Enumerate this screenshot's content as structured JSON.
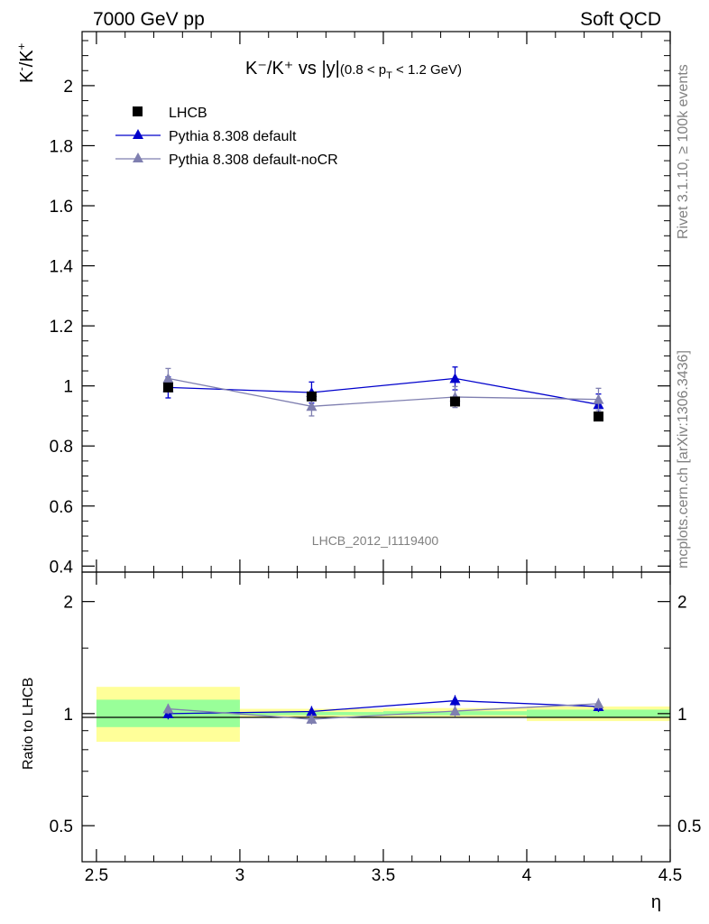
{
  "header": {
    "left": "7000 GeV pp",
    "right": "Soft QCD"
  },
  "side": {
    "rivet": "Rivet 3.1.10, ≥ 100k events",
    "source": "mcplots.cern.ch [arXiv:1306.3436]"
  },
  "analysis_id": "LHCB_2012_I1119400",
  "colors": {
    "data": "#000000",
    "default": "#0000cc",
    "nocr": "#7f7fb0",
    "band_outer": "#ffff99",
    "band_inner": "#99ff99"
  },
  "chart_data": [
    {
      "type": "line",
      "title": "K⁻/K⁺ vs |y|(0.8 < p_T < 1.2 GeV)",
      "title_parts": {
        "main": "K⁻/K⁺ vs |y|",
        "range": "(0.8 < p",
        "sub": "T",
        "range_end": " < 1.2 GeV)"
      },
      "ylabel": "K⁻/K⁺",
      "xlim": [
        2.45,
        4.5
      ],
      "ylim": [
        0.38,
        2.18
      ],
      "yticks": [
        0.4,
        0.6,
        0.8,
        1,
        1.2,
        1.4,
        1.6,
        1.8,
        2
      ],
      "ytick_labels": [
        "0.4",
        "0.6",
        "0.8",
        "1",
        "1.2",
        "1.4",
        "1.6",
        "1.8",
        "2"
      ],
      "legend": [
        "LHCB",
        "Pythia 8.308 default",
        "Pythia 8.308 default-noCR"
      ],
      "legend_position": "top-left",
      "series": [
        {
          "name": "LHCB",
          "x": [
            2.75,
            3.25,
            3.75,
            4.25
          ],
          "y": [
            0.995,
            0.965,
            0.948,
            0.898
          ],
          "marker": "square",
          "color": "#000000"
        },
        {
          "name": "Pythia 8.308 default",
          "x": [
            2.75,
            3.25,
            3.75,
            4.25
          ],
          "y": [
            0.995,
            0.978,
            1.025,
            0.938
          ],
          "err": [
            0.035,
            0.035,
            0.038,
            0.035
          ],
          "marker": "triangle",
          "color": "#0000cc"
        },
        {
          "name": "Pythia 8.308 default-noCR",
          "x": [
            2.75,
            3.25,
            3.75,
            4.25
          ],
          "y": [
            1.025,
            0.932,
            0.963,
            0.955
          ],
          "err": [
            0.033,
            0.032,
            0.035,
            0.037
          ],
          "marker": "triangle",
          "color": "#7f7fb0"
        }
      ]
    },
    {
      "type": "line",
      "xlabel": "η",
      "ylabel": "Ratio to LHCB",
      "xlim": [
        2.45,
        4.5
      ],
      "ylim": [
        0.4,
        2.4
      ],
      "yscale": "log",
      "yticks": [
        0.5,
        1,
        2
      ],
      "ytick_labels": [
        "0.5",
        "1",
        "2"
      ],
      "xticks": [
        2.5,
        3,
        3.5,
        4,
        4.5
      ],
      "xtick_labels": [
        "2.5",
        "3",
        "3.5",
        "4",
        "4.5"
      ],
      "bands": [
        {
          "x0": 2.5,
          "x1": 3.0,
          "outer": [
            0.84,
            1.18
          ],
          "inner": [
            0.92,
            1.09
          ]
        },
        {
          "x0": 3.0,
          "x1": 3.5,
          "outer": [
            0.975,
            1.03
          ],
          "inner": [
            0.99,
            1.01
          ]
        },
        {
          "x0": 3.5,
          "x1": 4.0,
          "outer": [
            0.975,
            1.035
          ],
          "inner": [
            0.99,
            1.015
          ]
        },
        {
          "x0": 4.0,
          "x1": 4.5,
          "outer": [
            0.955,
            1.045
          ],
          "inner": [
            0.975,
            1.025
          ]
        }
      ],
      "series": [
        {
          "name": "Pythia 8.308 default",
          "x": [
            2.75,
            3.25,
            3.75,
            4.25
          ],
          "y": [
            1.0,
            1.013,
            1.083,
            1.045
          ],
          "err": [
            0.035,
            0.035,
            0.038,
            0.035
          ],
          "color": "#0000cc"
        },
        {
          "name": "Pythia 8.308 default-noCR",
          "x": [
            2.75,
            3.25,
            3.75,
            4.25
          ],
          "y": [
            1.03,
            0.966,
            1.016,
            1.063
          ],
          "err": [
            0.033,
            0.032,
            0.035,
            0.037
          ],
          "color": "#7f7fb0"
        }
      ]
    }
  ]
}
